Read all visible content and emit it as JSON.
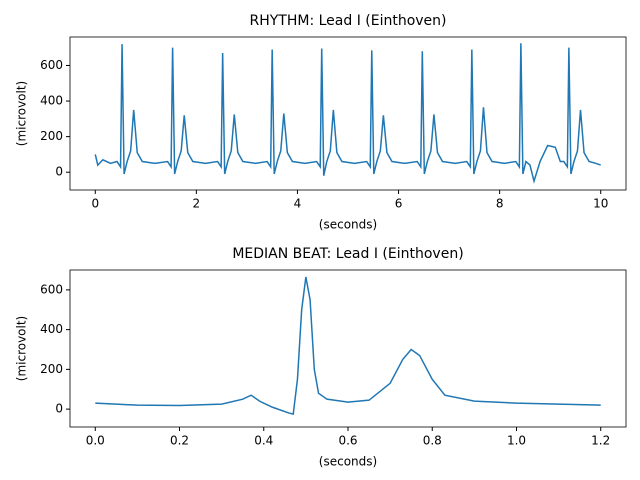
{
  "chart_data": [
    {
      "type": "line",
      "title": "RHYTHM: Lead I (Einthoven)",
      "x_label": "(seconds)",
      "y_label": "(microvolt)",
      "color": "#1f77b4",
      "xlim": [
        -0.5,
        10.5
      ],
      "ylim": [
        -100,
        760
      ],
      "xticks": [
        0,
        2,
        4,
        6,
        8,
        10
      ],
      "yticks": [
        0,
        200,
        400,
        600
      ],
      "x": [
        0,
        0.05,
        0.15,
        0.3,
        0.43,
        0.5,
        0.53,
        0.57,
        0.63,
        0.7,
        0.76,
        0.83,
        0.93,
        1.18,
        1.43,
        1.5,
        1.53,
        1.57,
        1.63,
        1.7,
        1.76,
        1.83,
        1.93,
        2.18,
        2.42,
        2.49,
        2.52,
        2.56,
        2.62,
        2.69,
        2.75,
        2.82,
        2.92,
        3.17,
        3.4,
        3.47,
        3.5,
        3.54,
        3.6,
        3.67,
        3.73,
        3.8,
        3.9,
        4.15,
        4.38,
        4.45,
        4.48,
        4.52,
        4.58,
        4.65,
        4.71,
        4.78,
        4.88,
        5.13,
        5.37,
        5.44,
        5.47,
        5.51,
        5.57,
        5.64,
        5.7,
        5.77,
        5.87,
        6.12,
        6.37,
        6.44,
        6.47,
        6.51,
        6.57,
        6.64,
        6.7,
        6.77,
        6.87,
        7.12,
        7.35,
        7.42,
        7.45,
        7.49,
        7.55,
        7.62,
        7.68,
        7.75,
        7.85,
        8.1,
        8.32,
        8.39,
        8.42,
        8.46,
        8.52,
        8.6,
        8.68,
        8.8,
        8.95,
        9.1,
        9.2,
        9.27,
        9.34,
        9.37,
        9.41,
        9.47,
        9.54,
        9.6,
        9.67,
        9.77,
        9.9,
        10
      ],
      "values": [
        100,
        40,
        70,
        50,
        60,
        30,
        720,
        -10,
        60,
        120,
        350,
        110,
        60,
        50,
        60,
        30,
        700,
        -10,
        60,
        120,
        320,
        110,
        60,
        50,
        60,
        30,
        670,
        -10,
        60,
        120,
        325,
        110,
        60,
        50,
        60,
        30,
        690,
        -10,
        60,
        120,
        330,
        110,
        60,
        50,
        60,
        30,
        695,
        -20,
        60,
        120,
        350,
        110,
        60,
        50,
        60,
        30,
        685,
        -10,
        60,
        120,
        320,
        110,
        60,
        50,
        60,
        30,
        680,
        -10,
        60,
        120,
        325,
        110,
        60,
        50,
        60,
        30,
        690,
        -10,
        60,
        120,
        365,
        110,
        60,
        50,
        60,
        30,
        725,
        -10,
        60,
        40,
        -50,
        60,
        150,
        140,
        60,
        60,
        30,
        700,
        -10,
        60,
        120,
        350,
        110,
        60,
        50,
        40
      ]
    },
    {
      "type": "line",
      "title": "MEDIAN BEAT: Lead I (Einthoven)",
      "x_label": "(seconds)",
      "y_label": "(microvolt)",
      "color": "#1f77b4",
      "xlim": [
        -0.06,
        1.26
      ],
      "ylim": [
        -90,
        700
      ],
      "xticks": [
        {
          "value": 0,
          "label": "0.0"
        },
        0.2,
        0.4,
        0.6,
        0.8,
        {
          "value": 1,
          "label": "1.0"
        },
        1.2
      ],
      "yticks": [
        0,
        200,
        400,
        600
      ],
      "x": [
        0,
        0.05,
        0.1,
        0.2,
        0.3,
        0.35,
        0.37,
        0.39,
        0.42,
        0.46,
        0.47,
        0.48,
        0.49,
        0.5,
        0.51,
        0.52,
        0.53,
        0.55,
        0.6,
        0.65,
        0.7,
        0.73,
        0.75,
        0.77,
        0.8,
        0.83,
        0.9,
        1.0,
        1.1,
        1.2
      ],
      "values": [
        30,
        25,
        20,
        18,
        25,
        50,
        70,
        40,
        10,
        -20,
        -25,
        150,
        500,
        665,
        550,
        200,
        80,
        50,
        35,
        45,
        130,
        250,
        300,
        270,
        150,
        70,
        40,
        30,
        25,
        20
      ]
    }
  ]
}
